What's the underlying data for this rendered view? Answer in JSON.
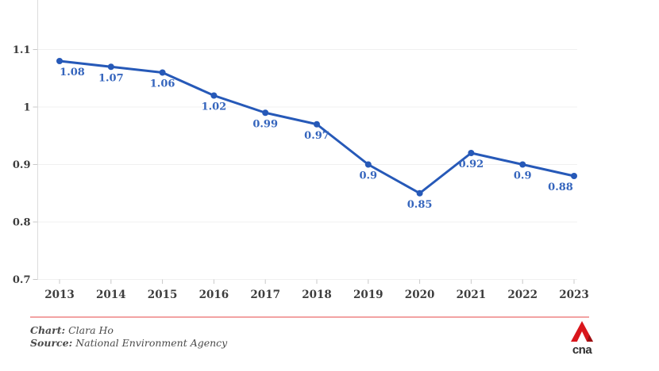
{
  "chart_data": {
    "type": "line",
    "title": "",
    "xlabel": "",
    "ylabel": "",
    "x": [
      "2013",
      "2014",
      "2015",
      "2016",
      "2017",
      "2018",
      "2019",
      "2020",
      "2021",
      "2022",
      "2023"
    ],
    "values": [
      1.08,
      1.07,
      1.06,
      1.02,
      0.99,
      0.97,
      0.9,
      0.85,
      0.92,
      0.9,
      0.88
    ],
    "point_labels": [
      "1.08",
      "1.07",
      "1.06",
      "1.02",
      "0.99",
      "0.97",
      "0.9",
      "0.85",
      "0.92",
      "0.9",
      "0.88"
    ],
    "yticks": [
      {
        "value": 1.1,
        "label": "1.1"
      },
      {
        "value": 1.0,
        "label": "1"
      },
      {
        "value": 0.9,
        "label": "0.9"
      },
      {
        "value": 0.8,
        "label": "0.8"
      },
      {
        "value": 0.7,
        "label": "0.7"
      }
    ],
    "ylim": [
      0.7,
      1.186
    ],
    "grid": "horizontal",
    "legend": "none"
  },
  "colors": {
    "line": "#2659b8",
    "point": "#2659b8",
    "value_label": "#3565bd",
    "grid": "#f0f0f0",
    "axis": "#dcdcdc",
    "tick": "#c8c8c8",
    "axis_text": "#3d3d3d",
    "divider": "#f2a3a3",
    "logo_red": "#d9161c",
    "logo_dark_red": "#9b0f12",
    "credit_text": "#4a4a4a"
  },
  "credits": {
    "chart_label": "Chart:",
    "chart_value": "Clara Ho",
    "source_label": "Source:",
    "source_value": "National Environment Agency"
  },
  "logo": {
    "name": "CNA",
    "text": "cna"
  }
}
